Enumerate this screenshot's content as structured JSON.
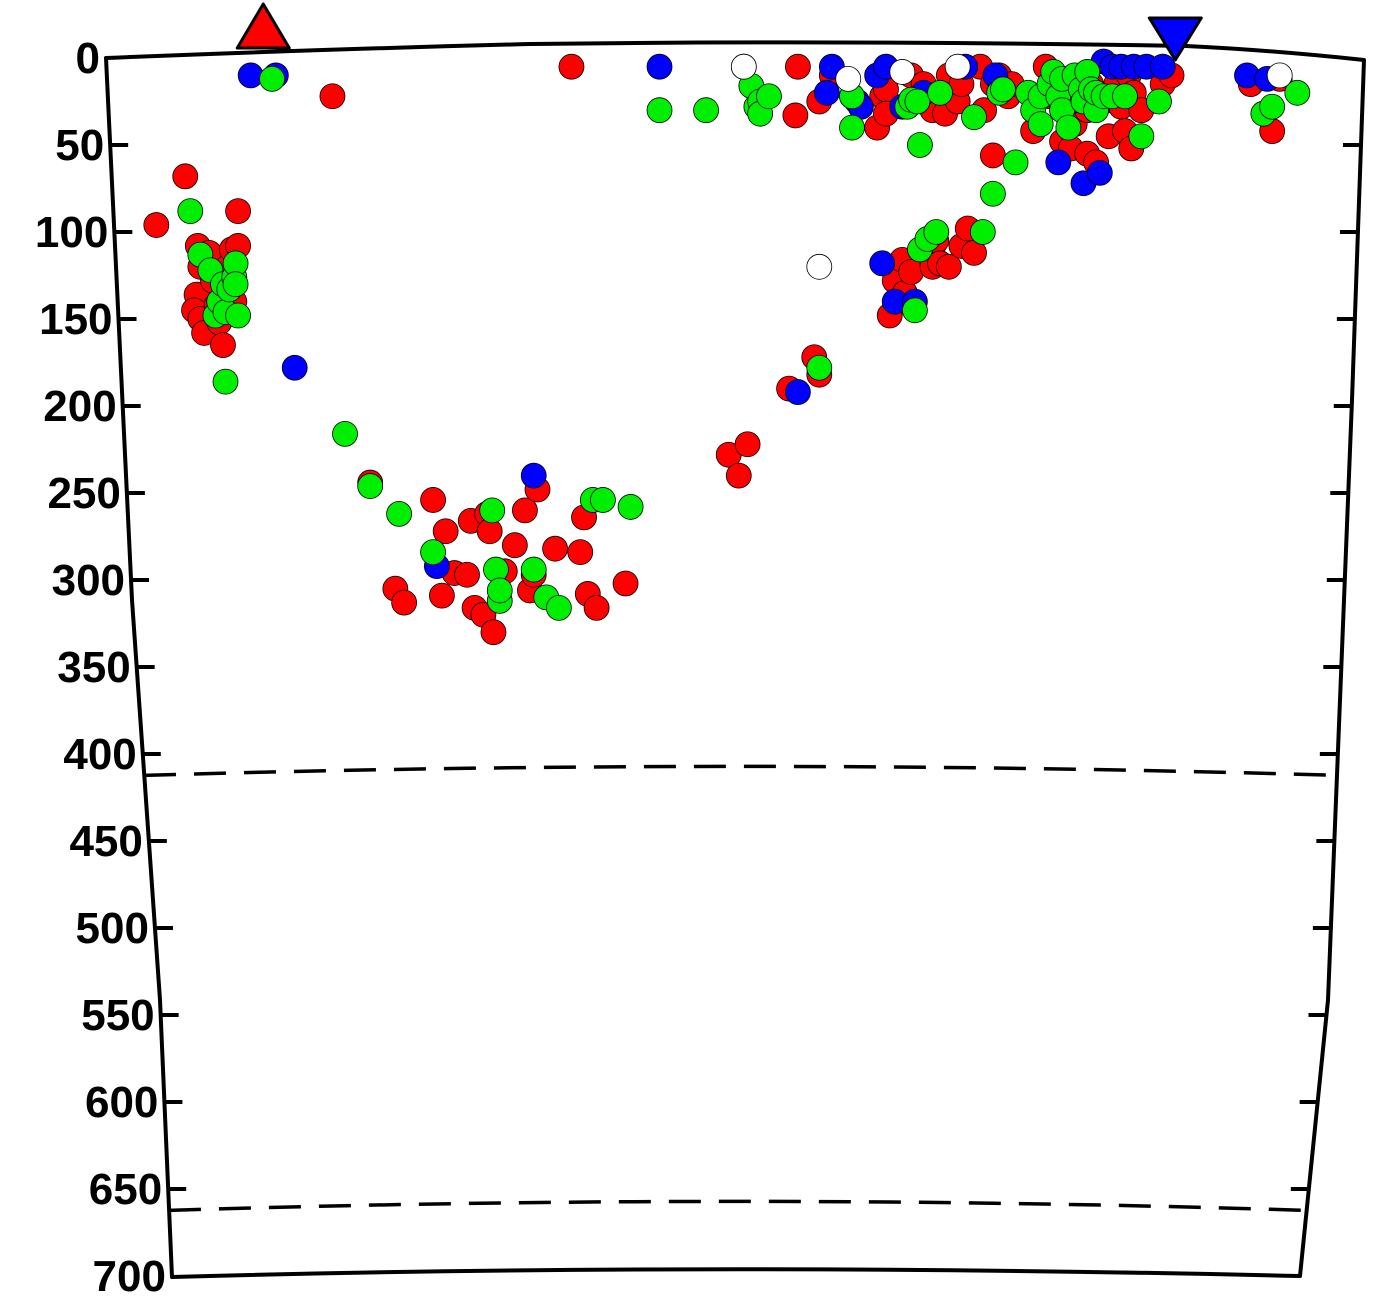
{
  "chart_data": {
    "type": "scatter",
    "title": "",
    "xlabel": "",
    "ylabel": "",
    "y_axis": {
      "inverted": true,
      "range": [
        0,
        700
      ],
      "ticks": [
        0,
        50,
        100,
        150,
        200,
        250,
        300,
        350,
        400,
        450,
        500,
        550,
        600,
        650,
        700
      ]
    },
    "x_axis": {
      "range": [
        0,
        100
      ],
      "labels_shown": false
    },
    "grid": false,
    "legend": "none",
    "reference_lines": [
      {
        "depth": 410,
        "style": "dashed"
      },
      {
        "depth": 660,
        "style": "dashed"
      }
    ],
    "markers": [
      {
        "symbol": "triangle-up",
        "color": "#ff0000",
        "x": 12.5
      },
      {
        "symbol": "triangle-down",
        "color": "#0000ff",
        "x": 85.0
      }
    ],
    "colors": {
      "red": "#ff0000",
      "blue": "#0000ff",
      "green": "#00ee00",
      "open": "#ffffff"
    },
    "series": [
      {
        "color": "#ff0000",
        "points": [
          [
            4,
            96
          ],
          [
            6.3,
            68
          ],
          [
            7.3,
            108
          ],
          [
            7.5,
            120
          ],
          [
            7.2,
            136
          ],
          [
            7,
            145
          ],
          [
            7.5,
            150
          ],
          [
            7.8,
            158
          ],
          [
            8.2,
            112
          ],
          [
            8.5,
            128
          ],
          [
            8.8,
            142
          ],
          [
            9,
            152
          ],
          [
            9.3,
            165
          ],
          [
            9.7,
            120
          ],
          [
            10,
            110
          ],
          [
            10.2,
            140
          ],
          [
            10.5,
            108
          ],
          [
            10.5,
            88
          ],
          [
            18,
            22
          ],
          [
            21,
            244
          ],
          [
            23,
            305
          ],
          [
            23.7,
            313
          ],
          [
            26,
            254
          ],
          [
            26.7,
            309
          ],
          [
            27,
            272
          ],
          [
            27.7,
            296
          ],
          [
            28.7,
            297
          ],
          [
            29,
            266
          ],
          [
            29.3,
            316
          ],
          [
            30,
            320
          ],
          [
            30.3,
            262
          ],
          [
            30.5,
            272
          ],
          [
            30.8,
            330
          ],
          [
            31.7,
            295
          ],
          [
            32.5,
            280
          ],
          [
            33.3,
            260
          ],
          [
            33.7,
            306
          ],
          [
            34,
            297
          ],
          [
            34.3,
            248
          ],
          [
            35.7,
            282
          ],
          [
            37.7,
            284
          ],
          [
            38,
            264
          ],
          [
            38.3,
            308
          ],
          [
            39,
            316
          ],
          [
            41.3,
            302
          ],
          [
            37,
            5
          ],
          [
            49.5,
            228
          ],
          [
            50.3,
            240
          ],
          [
            51,
            222
          ],
          [
            54.3,
            190
          ],
          [
            56.3,
            172
          ],
          [
            56.7,
            182
          ],
          [
            55,
            5
          ],
          [
            54.8,
            33
          ],
          [
            56.7,
            25
          ],
          [
            57.7,
            10
          ],
          [
            60,
            28
          ],
          [
            61.3,
            40
          ],
          [
            61.7,
            22
          ],
          [
            62,
            18
          ],
          [
            62,
            32
          ],
          [
            62.3,
            148
          ],
          [
            62.7,
            128
          ],
          [
            62.7,
            140
          ],
          [
            63.3,
            116
          ],
          [
            63.5,
            135
          ],
          [
            64,
            123
          ],
          [
            64,
            10
          ],
          [
            64.3,
            25
          ],
          [
            65,
            15
          ],
          [
            65.7,
            30
          ],
          [
            65.7,
            110
          ],
          [
            65.7,
            120
          ],
          [
            66,
            105
          ],
          [
            66.7,
            32
          ],
          [
            66.3,
            118
          ],
          [
            67,
            10
          ],
          [
            67,
            120
          ],
          [
            67.7,
            25
          ],
          [
            68,
            15
          ],
          [
            68,
            108
          ],
          [
            68.5,
            98
          ],
          [
            69,
            112
          ],
          [
            69.5,
            5
          ],
          [
            69.8,
            30
          ],
          [
            70.5,
            15
          ],
          [
            70.5,
            56
          ],
          [
            71,
            10
          ],
          [
            71.7,
            22
          ],
          [
            72,
            15
          ],
          [
            73.7,
            42
          ],
          [
            74.7,
            5
          ],
          [
            75,
            22
          ],
          [
            76,
            28
          ],
          [
            76,
            48
          ],
          [
            76.5,
            12
          ],
          [
            76.7,
            52
          ],
          [
            77,
            38
          ],
          [
            78,
            55
          ],
          [
            78,
            30
          ],
          [
            78.3,
            15
          ],
          [
            78.7,
            60
          ],
          [
            79.3,
            25
          ],
          [
            79.7,
            45
          ],
          [
            80.3,
            15
          ],
          [
            80.7,
            28
          ],
          [
            81,
            42
          ],
          [
            81.3,
            10
          ],
          [
            81.5,
            52
          ],
          [
            81.7,
            20
          ],
          [
            82.3,
            30
          ],
          [
            84,
            15
          ],
          [
            84.7,
            10
          ],
          [
            91,
            15
          ],
          [
            92.7,
            42
          ],
          [
            93.3,
            12
          ]
        ]
      },
      {
        "color": "#0000ff",
        "points": [
          [
            11.5,
            10
          ],
          [
            13.5,
            10
          ],
          [
            15,
            178
          ],
          [
            34,
            240
          ],
          [
            26.3,
            292
          ],
          [
            44,
            5
          ],
          [
            55,
            192
          ],
          [
            57.7,
            5
          ],
          [
            59.3,
            22
          ],
          [
            59.7,
            25
          ],
          [
            61.3,
            10
          ],
          [
            61.7,
            118
          ],
          [
            62,
            5
          ],
          [
            62.7,
            140
          ],
          [
            64.3,
            140
          ],
          [
            65,
            20
          ],
          [
            68.3,
            5
          ],
          [
            70.7,
            10
          ],
          [
            75.7,
            60
          ],
          [
            76.7,
            25
          ],
          [
            77.7,
            72
          ],
          [
            79,
            66
          ],
          [
            79.3,
            2
          ],
          [
            80,
            5
          ],
          [
            80.7,
            5
          ],
          [
            81.7,
            5
          ],
          [
            82.7,
            5
          ],
          [
            84,
            5
          ],
          [
            90.7,
            10
          ],
          [
            92.3,
            12
          ],
          [
            63.3,
            28
          ],
          [
            60,
            28
          ],
          [
            57.3,
            20
          ]
        ]
      },
      {
        "color": "#00ee00",
        "points": [
          [
            6.7,
            88
          ],
          [
            7.5,
            113
          ],
          [
            8.3,
            122
          ],
          [
            8.7,
            148
          ],
          [
            9,
            140
          ],
          [
            9.3,
            130
          ],
          [
            9.5,
            146
          ],
          [
            9.8,
            133
          ],
          [
            10.2,
            126
          ],
          [
            10.3,
            118
          ],
          [
            10.3,
            130
          ],
          [
            10.5,
            148
          ],
          [
            9.5,
            186
          ],
          [
            13.2,
            12
          ],
          [
            19,
            216
          ],
          [
            21,
            246
          ],
          [
            23.3,
            262
          ],
          [
            26,
            284
          ],
          [
            30.7,
            260
          ],
          [
            31,
            294
          ],
          [
            31.3,
            312
          ],
          [
            31.3,
            306
          ],
          [
            34,
            294
          ],
          [
            35,
            310
          ],
          [
            36,
            316
          ],
          [
            38.7,
            254
          ],
          [
            39.5,
            254
          ],
          [
            41.7,
            258
          ],
          [
            44,
            30
          ],
          [
            47.7,
            30
          ],
          [
            50.7,
            5
          ],
          [
            51.3,
            16
          ],
          [
            51.7,
            28
          ],
          [
            52,
            25
          ],
          [
            52,
            32
          ],
          [
            52.7,
            22
          ],
          [
            56.7,
            178
          ],
          [
            59.3,
            22
          ],
          [
            59.3,
            40
          ],
          [
            63.7,
            28
          ],
          [
            64,
            24
          ],
          [
            64.3,
            145
          ],
          [
            64.5,
            25
          ],
          [
            64.7,
            50
          ],
          [
            64.7,
            110
          ],
          [
            65.3,
            104
          ],
          [
            66,
            100
          ],
          [
            66.3,
            20
          ],
          [
            69,
            34
          ],
          [
            69.7,
            100
          ],
          [
            70.5,
            78
          ],
          [
            71,
            20
          ],
          [
            71.3,
            18
          ],
          [
            72.3,
            60
          ],
          [
            73.3,
            20
          ],
          [
            73.7,
            30
          ],
          [
            74.3,
            22
          ],
          [
            74.3,
            38
          ],
          [
            75,
            15
          ],
          [
            75.3,
            8
          ],
          [
            75.7,
            22
          ],
          [
            76,
            12
          ],
          [
            76,
            30
          ],
          [
            76.5,
            40
          ],
          [
            77,
            10
          ],
          [
            77.5,
            18
          ],
          [
            77.7,
            25
          ],
          [
            78,
            8
          ],
          [
            78.3,
            18
          ],
          [
            78.7,
            30
          ],
          [
            78.7,
            20
          ],
          [
            79.3,
            22
          ],
          [
            80,
            22
          ],
          [
            81,
            22
          ],
          [
            82.3,
            45
          ],
          [
            83.7,
            25
          ],
          [
            92,
            32
          ],
          [
            92.7,
            28
          ],
          [
            94.7,
            20
          ]
        ]
      },
      {
        "color": "#ffffff",
        "points": [
          [
            50.7,
            5
          ],
          [
            56.7,
            120
          ],
          [
            59,
            12
          ],
          [
            63.3,
            8
          ],
          [
            67.7,
            5
          ],
          [
            93.3,
            10
          ]
        ]
      }
    ]
  }
}
